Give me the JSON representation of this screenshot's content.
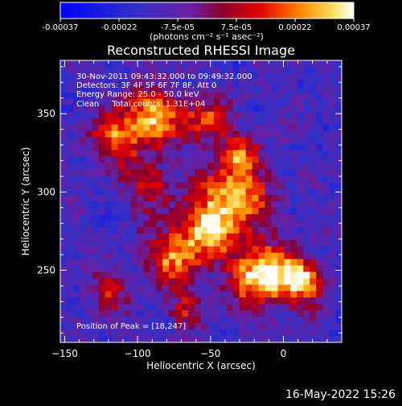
{
  "colorbar": {
    "ticks": [
      "-0.00037",
      "-0.00022",
      "-7.5e-05",
      "7.5e-05",
      "0.00022",
      "0.00037"
    ],
    "unit_label": "(photons cm⁻² s⁻¹ asec⁻²)",
    "min": -0.00037,
    "max": 0.00037
  },
  "chart_data": {
    "type": "heatmap",
    "title": "Reconstructed RHESSI Image",
    "xlabel": "Heliocentric X (arcsec)",
    "ylabel": "Heliocentric Y (arcsec)",
    "xlim": [
      -153,
      40
    ],
    "ylim": [
      204,
      384
    ],
    "x_ticks": [
      {
        "value": -150,
        "label": "−150"
      },
      {
        "value": -100,
        "label": "−100"
      },
      {
        "value": -50,
        "label": "−50"
      },
      {
        "value": 0,
        "label": "0"
      }
    ],
    "y_ticks": [
      {
        "value": 250,
        "label": "250"
      },
      {
        "value": 300,
        "label": "300"
      },
      {
        "value": 350,
        "label": "350"
      }
    ],
    "annotations": [
      "30-Nov-2011 09:43:32.000 to 09:49:32.000",
      "Detectors: 3F 4F 5F 6F 7F 8F, Att 0",
      "Energy Range: 25.0 - 50.0 keV",
      "Clean     Total counts: 1.31E+04"
    ],
    "peak_label": "Position of Peak = [18,247]",
    "peak": [
      18,
      247
    ],
    "colorscale": "rhessi-diverging",
    "grid": false
  },
  "footer": {
    "date": "16-May-2022 15:26"
  }
}
